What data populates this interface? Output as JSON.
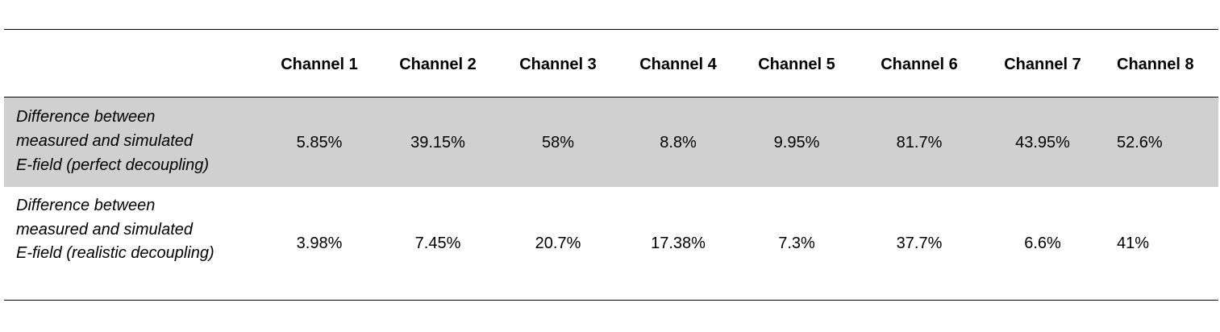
{
  "table": {
    "columns": [
      "Channel 1",
      "Channel 2",
      "Channel 3",
      "Channel 4",
      "Channel 5",
      "Channel 6",
      "Channel 7",
      "Channel 8"
    ],
    "rows": [
      {
        "label": [
          "Difference between",
          "measured and simulated",
          "E-field (perfect decoupling)"
        ],
        "cells": [
          "5.85%",
          "39.15%",
          "58%",
          "8.8%",
          "9.95%",
          "81.7%",
          "43.95%",
          "52.6%"
        ]
      },
      {
        "label": [
          "Difference between",
          "measured and simulated",
          "E-field (realistic decoupling)"
        ],
        "cells": [
          "3.98%",
          "7.45%",
          "20.7%",
          "17.38%",
          "7.3%",
          "37.7%",
          "6.6%",
          "41%"
        ]
      }
    ]
  }
}
